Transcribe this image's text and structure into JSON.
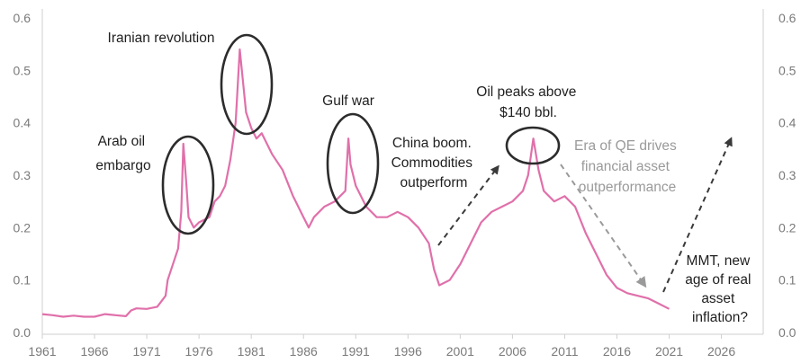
{
  "chart_data": {
    "type": "line",
    "title": "",
    "xlabel": "",
    "ylabel": "",
    "xlim": [
      1961,
      2030
    ],
    "ylim": [
      0,
      0.6
    ],
    "x_ticks": [
      "1961",
      "1966",
      "1971",
      "1976",
      "1981",
      "1986",
      "1991",
      "1996",
      "2001",
      "2006",
      "2011",
      "2016",
      "2021",
      "2026"
    ],
    "y_ticks_left": [
      "0.0",
      "0.1",
      "0.2",
      "0.3",
      "0.4",
      "0.5",
      "0.6"
    ],
    "y_ticks_right": [
      "0.0",
      "0.1",
      "0.2",
      "0.3",
      "0.4",
      "0.5",
      "0.6"
    ],
    "grid": false,
    "series_color": "#e070aa",
    "series": [
      {
        "name": "",
        "x": [
          1961.0,
          1962.0,
          1963.0,
          1964.0,
          1965.0,
          1966.0,
          1967.0,
          1968.0,
          1969.0,
          1969.5,
          1970.0,
          1971.0,
          1972.0,
          1972.8,
          1973.0,
          1973.5,
          1974.0,
          1974.3,
          1974.5,
          1974.8,
          1975.0,
          1975.5,
          1976.0,
          1976.5,
          1977.0,
          1977.5,
          1978.0,
          1978.5,
          1979.0,
          1979.5,
          1979.9,
          1980.2,
          1980.5,
          1981.0,
          1981.5,
          1982.0,
          1983.0,
          1984.0,
          1985.0,
          1986.0,
          1986.5,
          1987.0,
          1988.0,
          1989.0,
          1990.0,
          1990.3,
          1990.5,
          1991.0,
          1992.0,
          1993.0,
          1994.0,
          1995.0,
          1996.0,
          1997.0,
          1998.0,
          1998.5,
          1999.0,
          2000.0,
          2001.0,
          2002.0,
          2003.0,
          2004.0,
          2005.0,
          2006.0,
          2007.0,
          2007.5,
          2008.0,
          2008.5,
          2009.0,
          2010.0,
          2011.0,
          2012.0,
          2013.0,
          2014.0,
          2015.0,
          2016.0,
          2017.0,
          2018.0,
          2019.0,
          2020.0,
          2021.0
        ],
        "values": [
          0.035,
          0.033,
          0.03,
          0.032,
          0.03,
          0.03,
          0.035,
          0.033,
          0.031,
          0.042,
          0.046,
          0.045,
          0.049,
          0.07,
          0.1,
          0.13,
          0.16,
          0.23,
          0.36,
          0.28,
          0.22,
          0.2,
          0.21,
          0.215,
          0.22,
          0.25,
          0.26,
          0.28,
          0.33,
          0.4,
          0.54,
          0.48,
          0.42,
          0.39,
          0.37,
          0.38,
          0.34,
          0.31,
          0.26,
          0.22,
          0.2,
          0.22,
          0.24,
          0.25,
          0.27,
          0.37,
          0.32,
          0.28,
          0.24,
          0.22,
          0.22,
          0.23,
          0.22,
          0.2,
          0.17,
          0.12,
          0.09,
          0.1,
          0.13,
          0.17,
          0.21,
          0.23,
          0.24,
          0.25,
          0.27,
          0.3,
          0.37,
          0.31,
          0.27,
          0.25,
          0.26,
          0.24,
          0.19,
          0.15,
          0.11,
          0.085,
          0.075,
          0.07,
          0.065,
          0.055,
          0.045
        ]
      }
    ],
    "annotations": [
      {
        "id": "arab",
        "lines": [
          "Arab oil",
          "embargo"
        ]
      },
      {
        "id": "iran",
        "lines": [
          "Iranian revolution"
        ]
      },
      {
        "id": "gulf",
        "lines": [
          "Gulf war"
        ]
      },
      {
        "id": "china",
        "lines": [
          "China boom.",
          "Commodities",
          "outperform"
        ]
      },
      {
        "id": "oil140",
        "lines": [
          "Oil peaks above",
          "$140 bbl."
        ]
      },
      {
        "id": "qe",
        "lines": [
          "Era of QE drives",
          "financial asset",
          "outperformance"
        ]
      },
      {
        "id": "mmt",
        "lines": [
          "MMT, new",
          "age of real",
          "asset",
          "inflation?"
        ]
      }
    ]
  }
}
